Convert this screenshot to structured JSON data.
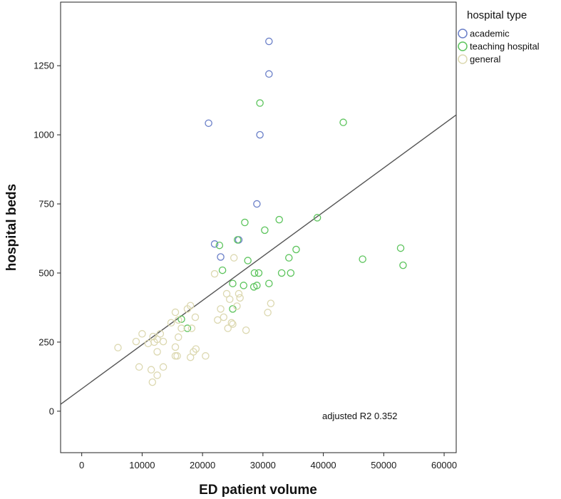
{
  "chart_data": {
    "type": "scatter",
    "xlabel": "ED patient volume",
    "ylabel": "hospital beds",
    "xlim": [
      -3500,
      62000
    ],
    "ylim": [
      -150,
      1480
    ],
    "xticks": [
      0,
      10000,
      20000,
      30000,
      40000,
      50000,
      60000
    ],
    "yticks": [
      0,
      250,
      500,
      750,
      1000,
      1250
    ],
    "grid": false,
    "legend": {
      "title": "hospital type",
      "placement": "right-outside-top"
    },
    "annotation": "adjusted R2 0.352",
    "fit_line": {
      "x": [
        -3500,
        62000
      ],
      "y": [
        25,
        1072
      ]
    },
    "series": [
      {
        "name": "academic",
        "color": "#6a7fc8",
        "points": [
          [
            31000,
            1338
          ],
          [
            31000,
            1220
          ],
          [
            21000,
            1042
          ],
          [
            29500,
            1000
          ],
          [
            29000,
            750
          ],
          [
            22000,
            605
          ],
          [
            26000,
            620
          ],
          [
            23000,
            558
          ]
        ]
      },
      {
        "name": "teaching hospital",
        "color": "#5cc45c",
        "points": [
          [
            29500,
            1115
          ],
          [
            43300,
            1045
          ],
          [
            39000,
            700
          ],
          [
            32700,
            693
          ],
          [
            27000,
            683
          ],
          [
            30300,
            655
          ],
          [
            25800,
            620
          ],
          [
            22800,
            600
          ],
          [
            27500,
            545
          ],
          [
            35500,
            585
          ],
          [
            34300,
            555
          ],
          [
            46500,
            550
          ],
          [
            52800,
            590
          ],
          [
            53200,
            528
          ],
          [
            23300,
            510
          ],
          [
            28600,
            500
          ],
          [
            29300,
            500
          ],
          [
            33100,
            500
          ],
          [
            34600,
            500
          ],
          [
            25000,
            462
          ],
          [
            31000,
            462
          ],
          [
            26800,
            455
          ],
          [
            28500,
            450
          ],
          [
            29000,
            455
          ],
          [
            25000,
            370
          ],
          [
            16500,
            333
          ],
          [
            17500,
            300
          ]
        ]
      },
      {
        "name": "general",
        "color": "#dcd8b0",
        "points": [
          [
            25200,
            555
          ],
          [
            22000,
            497
          ],
          [
            24000,
            425
          ],
          [
            26000,
            425
          ],
          [
            24500,
            405
          ],
          [
            26200,
            410
          ],
          [
            23000,
            370
          ],
          [
            25700,
            380
          ],
          [
            31300,
            390
          ],
          [
            30800,
            357
          ],
          [
            23500,
            340
          ],
          [
            22500,
            330
          ],
          [
            24800,
            320
          ],
          [
            25000,
            315
          ],
          [
            24200,
            300
          ],
          [
            27200,
            293
          ],
          [
            15500,
            358
          ],
          [
            17500,
            370
          ],
          [
            18000,
            382
          ],
          [
            18800,
            340
          ],
          [
            16000,
            330
          ],
          [
            14800,
            320
          ],
          [
            16500,
            300
          ],
          [
            18200,
            300
          ],
          [
            16000,
            268
          ],
          [
            13000,
            280
          ],
          [
            10000,
            280
          ],
          [
            11800,
            270
          ],
          [
            12500,
            260
          ],
          [
            12000,
            250
          ],
          [
            13500,
            252
          ],
          [
            9000,
            252
          ],
          [
            11000,
            245
          ],
          [
            6000,
            230
          ],
          [
            15500,
            232
          ],
          [
            18900,
            225
          ],
          [
            18500,
            215
          ],
          [
            12500,
            215
          ],
          [
            15800,
            200
          ],
          [
            15500,
            200
          ],
          [
            18000,
            195
          ],
          [
            20500,
            200
          ],
          [
            9500,
            160
          ],
          [
            13500,
            160
          ],
          [
            11500,
            150
          ],
          [
            12500,
            130
          ],
          [
            11700,
            105
          ]
        ]
      }
    ]
  }
}
